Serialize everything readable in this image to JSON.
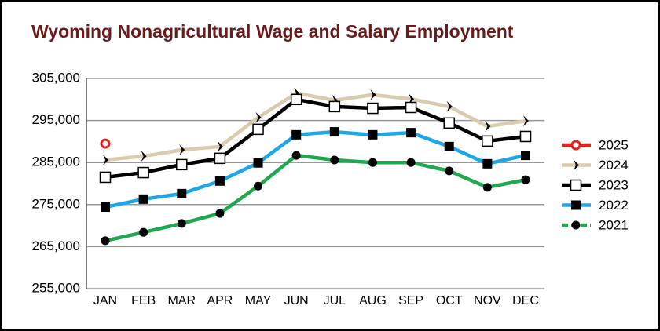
{
  "chart_data": {
    "type": "line",
    "title": "Wyoming Nonagricultural Wage and Salary Employment",
    "categories": [
      "JAN",
      "FEB",
      "MAR",
      "APR",
      "MAY",
      "JUN",
      "JUL",
      "AUG",
      "SEP",
      "OCT",
      "NOV",
      "DEC"
    ],
    "ylim": [
      255000,
      305000
    ],
    "yticks": [
      {
        "value": 255000,
        "label": "255,000"
      },
      {
        "value": 265000,
        "label": "265,000"
      },
      {
        "value": 275000,
        "label": "275,000"
      },
      {
        "value": 285000,
        "label": "285,000"
      },
      {
        "value": 295000,
        "label": "295,000"
      },
      {
        "value": 305000,
        "label": "305,000"
      }
    ],
    "grid": true,
    "legend": "right",
    "series": [
      {
        "name": "2025",
        "color": "#e8201c",
        "marker": "open-circle",
        "values": [
          289500,
          null,
          null,
          null,
          null,
          null,
          null,
          null,
          null,
          null,
          null,
          null
        ]
      },
      {
        "name": "2024",
        "color": "#d9cbae",
        "marker": "chevron",
        "values": [
          285600,
          286500,
          288000,
          288800,
          295700,
          301500,
          299800,
          301100,
          300100,
          298300,
          293600,
          294900
        ]
      },
      {
        "name": "2023",
        "color": "#000000",
        "marker": "open-square",
        "values": [
          281500,
          282600,
          284500,
          286000,
          292900,
          300000,
          298300,
          297900,
          298100,
          294400,
          290100,
          291200
        ]
      },
      {
        "name": "2022",
        "color": "#1ea7e8",
        "marker": "square",
        "values": [
          274400,
          276300,
          277600,
          280600,
          284900,
          291600,
          292300,
          291600,
          292100,
          288800,
          284700,
          286700
        ]
      },
      {
        "name": "2021",
        "color": "#1fa84f",
        "marker": "circle",
        "values": [
          266400,
          268400,
          270500,
          272900,
          279400,
          286700,
          285600,
          285000,
          285000,
          283000,
          279100,
          280900
        ]
      }
    ]
  }
}
